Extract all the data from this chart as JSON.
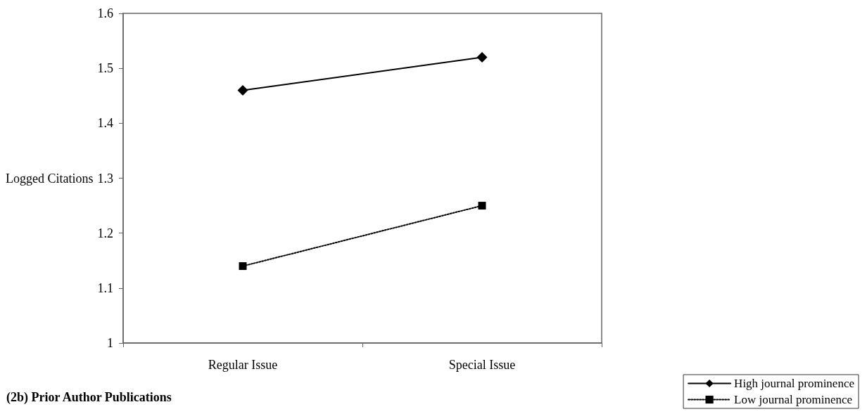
{
  "chart_data": {
    "type": "line",
    "title": "(2b) Prior Author Publications",
    "ylabel": "Logged Citations",
    "categories": [
      "Regular Issue",
      "Special Issue"
    ],
    "series": [
      {
        "name": "High journal prominence",
        "color": "#000000",
        "values": [
          1.46,
          1.52
        ],
        "marker": "diamond",
        "line_style": "solid"
      },
      {
        "name": "Low journal prominence",
        "color": "#000000",
        "values": [
          1.14,
          1.25
        ],
        "marker": "square",
        "line_style": "dotted"
      }
    ],
    "ylim": [
      1,
      1.6
    ],
    "yticks": [
      1,
      1.1,
      1.2,
      1.3,
      1.4,
      1.5,
      1.6
    ],
    "grid": false,
    "legend": "bottom right"
  }
}
